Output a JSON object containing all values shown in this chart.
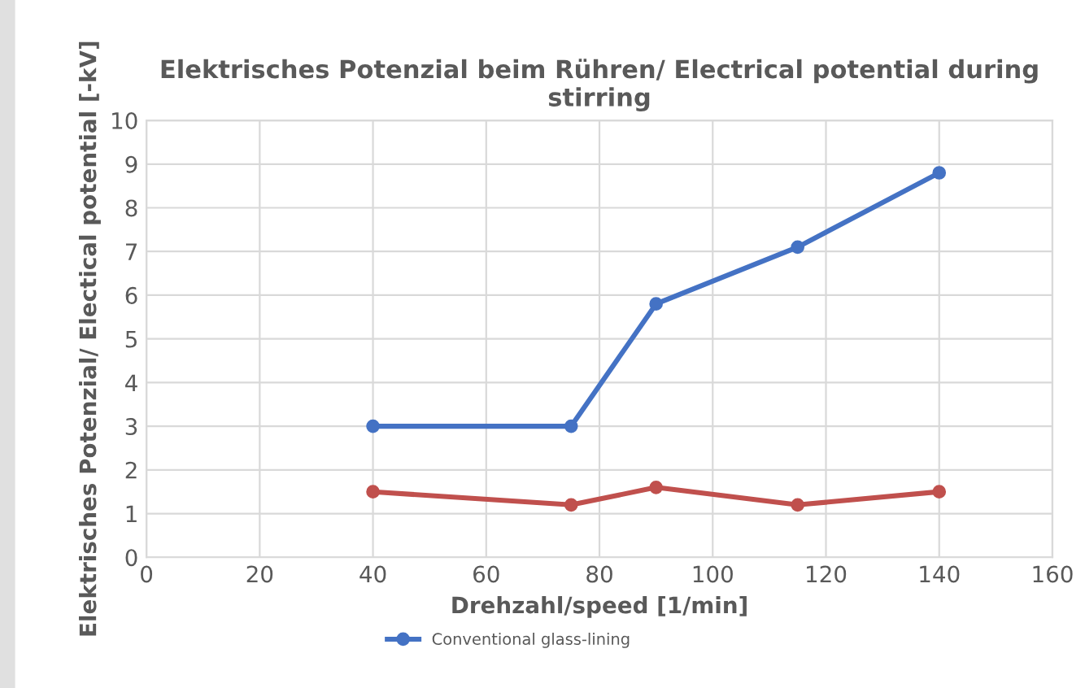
{
  "chart_data": {
    "type": "line",
    "title": "Elektrisches Potenzial beim Rühren/ Electrical potential during stirring",
    "xlabel": "Drehzahl/speed [1/min]",
    "ylabel": "Elektrisches Potenzial/ Electical potential [-kV]",
    "x": [
      40,
      75,
      90,
      115,
      140
    ],
    "series": [
      {
        "name": "Conventional glass-lining",
        "color": "#4472c4",
        "values": [
          3.0,
          3.0,
          5.8,
          7.1,
          8.8
        ]
      },
      {
        "color": "#c0504d",
        "values": [
          1.5,
          1.2,
          1.6,
          1.2,
          1.5
        ]
      }
    ],
    "xlim": [
      0,
      160
    ],
    "xticks": [
      0,
      20,
      40,
      60,
      80,
      100,
      120,
      140,
      160
    ],
    "ylim": [
      0,
      10
    ],
    "yticks": [
      0,
      1,
      2,
      3,
      4,
      5,
      6,
      7,
      8,
      9,
      10
    ],
    "grid": true,
    "legend": "bottom",
    "marker": "circle",
    "line_style": "solid"
  }
}
